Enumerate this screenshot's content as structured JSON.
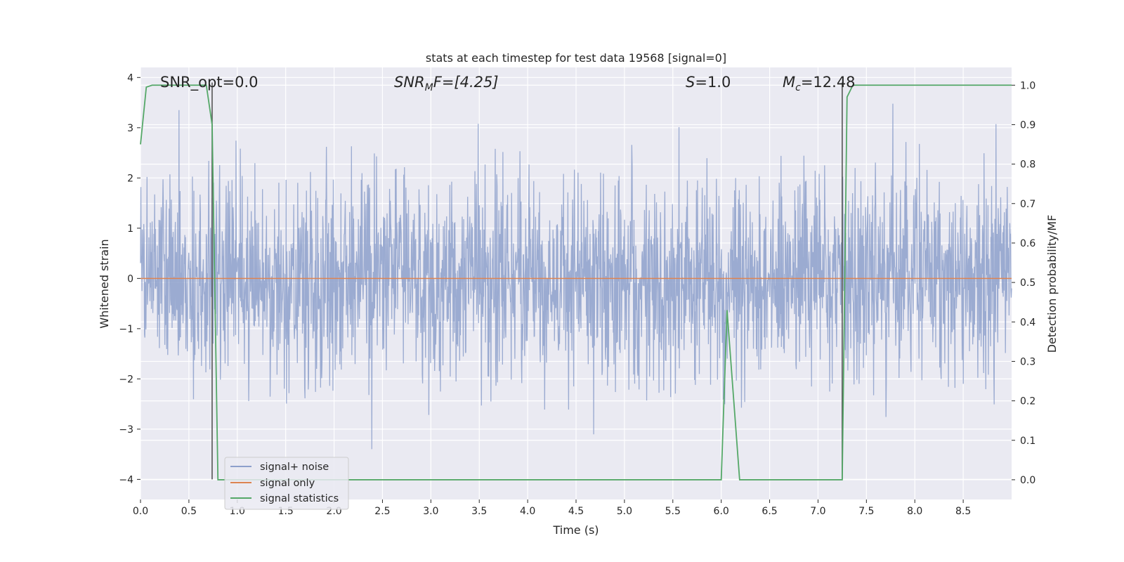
{
  "chart_data": {
    "type": "line",
    "title": "stats at each timestep for test data 19568 [signal=0]",
    "xlabel": "Time (s)",
    "ylabel_left": "Whitened strain",
    "ylabel_right": "Detection probability/MF",
    "xlim": [
      0,
      9.0
    ],
    "ylim_left": [
      -4.4,
      4.2
    ],
    "ylim_right": [
      -0.05,
      1.045
    ],
    "x_ticks": [
      "0.0",
      "0.5",
      "1.0",
      "1.5",
      "2.0",
      "2.5",
      "3.0",
      "3.5",
      "4.0",
      "4.5",
      "5.0",
      "5.5",
      "6.0",
      "6.5",
      "7.0",
      "7.5",
      "8.0",
      "8.5"
    ],
    "y_ticks_left": [
      "4",
      "3",
      "2",
      "1",
      "0",
      "−1",
      "−2",
      "−3",
      "−4"
    ],
    "y_ticks_right": [
      "1.0",
      "0.9",
      "0.8",
      "0.7",
      "0.6",
      "0.5",
      "0.4",
      "0.3",
      "0.2",
      "0.1",
      "0.0"
    ],
    "grid": true,
    "legend_position": "lower-left",
    "annotations": {
      "snr_opt": "SNR_opt=0.0",
      "snr_mf_main": "SNR",
      "snr_mf_sub": "M",
      "snr_mf_tail": "F=[4.25]",
      "s_main": "S",
      "s_tail": "=1.0",
      "mc_main": "M",
      "mc_sub": "c",
      "mc_tail": "=12.48"
    },
    "vertical_markers_x": [
      0.74,
      7.25
    ],
    "series": [
      {
        "name": "signal+ noise",
        "color": "#8da0cb",
        "axis": "left",
        "description_values": "whitened noise, roughly amplitude ±1.5 with spikes up to ±3.8",
        "noise_range": [
          -3.8,
          3.8
        ]
      },
      {
        "name": "signal only",
        "color": "#dd8452",
        "axis": "left",
        "x": [
          0,
          9.0
        ],
        "y": [
          0,
          0
        ]
      },
      {
        "name": "signal statistics",
        "color": "#55a868",
        "axis": "right",
        "x": [
          0,
          0.06,
          0.12,
          0.5,
          0.68,
          0.74,
          0.8,
          6.0,
          6.06,
          6.19,
          7.25,
          7.3,
          7.36,
          8.0,
          9.0
        ],
        "y": [
          0.85,
          0.995,
          1.0,
          1.0,
          1.0,
          0.9,
          0.0,
          0.0,
          0.43,
          0.0,
          0.0,
          0.97,
          1.0,
          1.0,
          1.0
        ]
      }
    ]
  }
}
